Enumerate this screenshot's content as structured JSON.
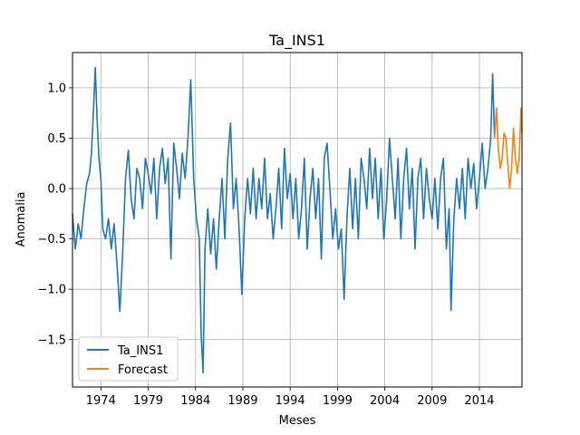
{
  "chart_data": {
    "type": "line",
    "title": "Ta_INS1",
    "xlabel": "Meses",
    "ylabel": "Anomalia",
    "xlim": [
      1971.0,
      2018.5
    ],
    "ylim": [
      -1.97,
      1.35
    ],
    "xticks": [
      1974,
      1979,
      1984,
      1989,
      1994,
      1999,
      2004,
      2009,
      2014
    ],
    "yticks": [
      -1.5,
      -1.0,
      -0.5,
      0.0,
      0.5,
      1.0
    ],
    "ytick_labels": [
      "−1.5",
      "−1.0",
      "−0.5",
      "0.0",
      "0.5",
      "1.0"
    ],
    "grid": true,
    "legend": "lower-left",
    "series": [
      {
        "name": "Ta_INS1",
        "color": "#1f77b4",
        "points": [
          [
            1971.0,
            -0.25
          ],
          [
            1971.3,
            -0.6
          ],
          [
            1971.6,
            -0.35
          ],
          [
            1971.9,
            -0.5
          ],
          [
            1972.2,
            -0.2
          ],
          [
            1972.5,
            0.05
          ],
          [
            1972.8,
            0.15
          ],
          [
            1973.0,
            0.35
          ],
          [
            1973.2,
            0.75
          ],
          [
            1973.4,
            1.2
          ],
          [
            1973.6,
            0.7
          ],
          [
            1973.8,
            0.3
          ],
          [
            1974.0,
            0.1
          ],
          [
            1974.2,
            -0.4
          ],
          [
            1974.5,
            -0.5
          ],
          [
            1974.8,
            -0.3
          ],
          [
            1975.1,
            -0.6
          ],
          [
            1975.4,
            -0.35
          ],
          [
            1975.7,
            -0.75
          ],
          [
            1976.0,
            -1.22
          ],
          [
            1976.3,
            -0.65
          ],
          [
            1976.6,
            0.1
          ],
          [
            1976.9,
            0.38
          ],
          [
            1977.2,
            -0.1
          ],
          [
            1977.5,
            -0.3
          ],
          [
            1977.8,
            0.2
          ],
          [
            1978.1,
            0.1
          ],
          [
            1978.4,
            -0.2
          ],
          [
            1978.7,
            0.3
          ],
          [
            1979.0,
            0.15
          ],
          [
            1979.3,
            -0.05
          ],
          [
            1979.6,
            0.3
          ],
          [
            1979.9,
            -0.3
          ],
          [
            1980.2,
            0.2
          ],
          [
            1980.5,
            0.4
          ],
          [
            1980.8,
            0.05
          ],
          [
            1981.1,
            0.3
          ],
          [
            1981.4,
            -0.7
          ],
          [
            1981.7,
            0.45
          ],
          [
            1982.0,
            0.2
          ],
          [
            1982.3,
            -0.1
          ],
          [
            1982.6,
            0.35
          ],
          [
            1982.9,
            0.1
          ],
          [
            1983.2,
            0.5
          ],
          [
            1983.5,
            1.08
          ],
          [
            1983.8,
            0.1
          ],
          [
            1984.1,
            -0.3
          ],
          [
            1984.4,
            -0.5
          ],
          [
            1984.6,
            -1.45
          ],
          [
            1984.8,
            -1.83
          ],
          [
            1985.0,
            -0.6
          ],
          [
            1985.3,
            -0.2
          ],
          [
            1985.6,
            -0.65
          ],
          [
            1985.9,
            -0.3
          ],
          [
            1986.2,
            -0.8
          ],
          [
            1986.5,
            -0.3
          ],
          [
            1986.8,
            0.1
          ],
          [
            1987.1,
            -0.5
          ],
          [
            1987.4,
            0.3
          ],
          [
            1987.7,
            0.65
          ],
          [
            1988.0,
            -0.2
          ],
          [
            1988.3,
            0.1
          ],
          [
            1988.6,
            -0.4
          ],
          [
            1988.9,
            -1.05
          ],
          [
            1989.2,
            -0.3
          ],
          [
            1989.5,
            0.1
          ],
          [
            1989.8,
            -0.25
          ],
          [
            1990.1,
            0.2
          ],
          [
            1990.4,
            -0.3
          ],
          [
            1990.7,
            0.1
          ],
          [
            1991.0,
            -0.2
          ],
          [
            1991.3,
            0.3
          ],
          [
            1991.6,
            -0.3
          ],
          [
            1991.9,
            -0.05
          ],
          [
            1992.2,
            -0.5
          ],
          [
            1992.5,
            -0.2
          ],
          [
            1992.8,
            0.2
          ],
          [
            1993.1,
            -0.4
          ],
          [
            1993.4,
            0.4
          ],
          [
            1993.7,
            -0.1
          ],
          [
            1994.0,
            0.15
          ],
          [
            1994.3,
            -0.3
          ],
          [
            1994.6,
            0.1
          ],
          [
            1994.9,
            -0.5
          ],
          [
            1995.2,
            -0.2
          ],
          [
            1995.5,
            0.3
          ],
          [
            1995.8,
            -0.6
          ],
          [
            1996.1,
            -0.1
          ],
          [
            1996.4,
            0.2
          ],
          [
            1996.7,
            -0.3
          ],
          [
            1997.0,
            0.1
          ],
          [
            1997.3,
            -0.7
          ],
          [
            1997.6,
            0.3
          ],
          [
            1997.9,
            0.45
          ],
          [
            1998.2,
            0.0
          ],
          [
            1998.5,
            -0.5
          ],
          [
            1998.8,
            -0.2
          ],
          [
            1999.1,
            -0.6
          ],
          [
            1999.4,
            -0.4
          ],
          [
            1999.7,
            -1.1
          ],
          [
            2000.0,
            -0.3
          ],
          [
            2000.3,
            0.2
          ],
          [
            2000.6,
            -0.4
          ],
          [
            2000.9,
            0.1
          ],
          [
            2001.2,
            -0.5
          ],
          [
            2001.5,
            0.3
          ],
          [
            2001.8,
            0.1
          ],
          [
            2002.1,
            -0.2
          ],
          [
            2002.4,
            0.4
          ],
          [
            2002.7,
            -0.1
          ],
          [
            2003.0,
            0.3
          ],
          [
            2003.3,
            -0.3
          ],
          [
            2003.6,
            0.2
          ],
          [
            2003.9,
            -0.5
          ],
          [
            2004.2,
            -0.1
          ],
          [
            2004.5,
            0.5
          ],
          [
            2004.8,
            0.1
          ],
          [
            2005.1,
            -0.3
          ],
          [
            2005.4,
            0.3
          ],
          [
            2005.7,
            -0.5
          ],
          [
            2006.0,
            0.1
          ],
          [
            2006.3,
            0.4
          ],
          [
            2006.6,
            -0.2
          ],
          [
            2006.9,
            0.2
          ],
          [
            2007.2,
            -0.6
          ],
          [
            2007.5,
            0.1
          ],
          [
            2007.8,
            0.3
          ],
          [
            2008.1,
            -0.3
          ],
          [
            2008.4,
            0.2
          ],
          [
            2008.7,
            -0.1
          ],
          [
            2009.0,
            -0.3
          ],
          [
            2009.3,
            0.1
          ],
          [
            2009.6,
            -0.4
          ],
          [
            2009.9,
            0.1
          ],
          [
            2010.2,
            0.3
          ],
          [
            2010.5,
            -0.6
          ],
          [
            2010.8,
            -0.2
          ],
          [
            2011.0,
            -1.21
          ],
          [
            2011.3,
            -0.3
          ],
          [
            2011.6,
            0.1
          ],
          [
            2011.9,
            -0.2
          ],
          [
            2012.2,
            0.2
          ],
          [
            2012.5,
            -0.3
          ],
          [
            2012.8,
            0.3
          ],
          [
            2013.1,
            0.0
          ],
          [
            2013.4,
            0.25
          ],
          [
            2013.7,
            -0.2
          ],
          [
            2014.0,
            0.1
          ],
          [
            2014.3,
            0.45
          ],
          [
            2014.6,
            0.0
          ],
          [
            2014.9,
            0.2
          ],
          [
            2015.2,
            0.5
          ],
          [
            2015.4,
            1.14
          ],
          [
            2015.6,
            0.5
          ]
        ]
      },
      {
        "name": "Forecast",
        "color": "#ff7f0e",
        "points": [
          [
            2015.6,
            0.5
          ],
          [
            2015.8,
            0.8
          ],
          [
            2016.0,
            0.4
          ],
          [
            2016.2,
            0.2
          ],
          [
            2016.4,
            0.3
          ],
          [
            2016.6,
            0.55
          ],
          [
            2016.8,
            0.5
          ],
          [
            2017.0,
            0.25
          ],
          [
            2017.2,
            0.0
          ],
          [
            2017.4,
            0.2
          ],
          [
            2017.6,
            0.6
          ],
          [
            2017.8,
            0.3
          ],
          [
            2018.0,
            0.15
          ],
          [
            2018.2,
            0.3
          ],
          [
            2018.4,
            0.8
          ],
          [
            2018.5,
            0.55
          ]
        ]
      }
    ]
  }
}
